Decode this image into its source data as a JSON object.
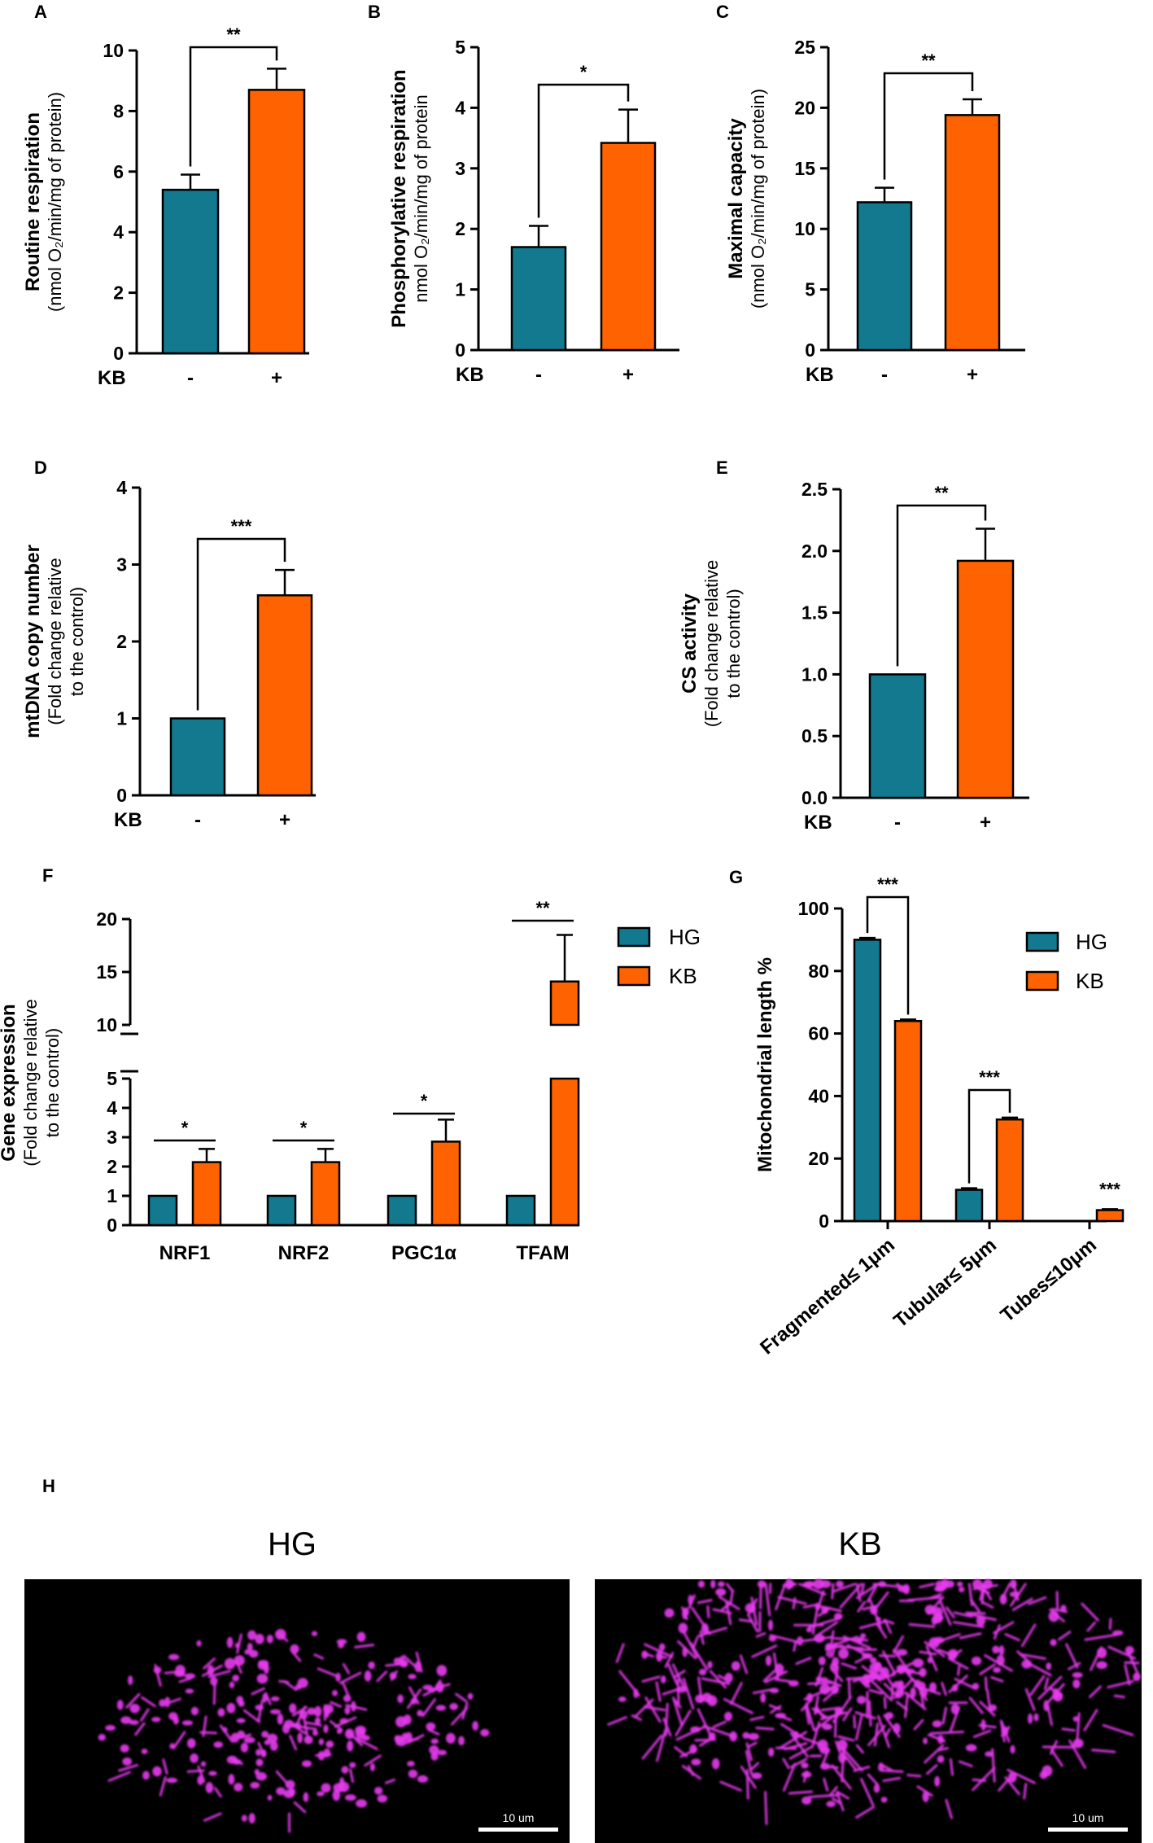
{
  "colors": {
    "hg": "#13798f",
    "kb": "#ff6200",
    "micrograph_bg": "#000000",
    "mito": "#e83cf0"
  },
  "chart_data": [
    {
      "id": "A",
      "type": "bar",
      "panel_label": "A",
      "ylabel_bold": "Routine respiration",
      "ylabel_sub": "(nmol O₂/min/mg of protein)",
      "ylim": [
        0,
        10
      ],
      "yticks": [
        0,
        2,
        4,
        6,
        8,
        10
      ],
      "tick_labels": [
        "0",
        "2",
        "4",
        "6",
        "8",
        "10"
      ],
      "factor_label": "KB",
      "categories": [
        "-",
        "+"
      ],
      "values": [
        5.4,
        8.7
      ],
      "errors": [
        0.5,
        0.7
      ],
      "significance": "**"
    },
    {
      "id": "B",
      "type": "bar",
      "panel_label": "B",
      "ylabel_bold": "Phosphorylative respiration",
      "ylabel_sub": "nmol O₂/min/mg of protein",
      "ylim": [
        0,
        5
      ],
      "yticks": [
        0,
        1,
        2,
        3,
        4,
        5
      ],
      "tick_labels": [
        "0",
        "1",
        "2",
        "3",
        "4",
        "5"
      ],
      "factor_label": "KB",
      "categories": [
        "-",
        "+"
      ],
      "values": [
        1.7,
        3.42
      ],
      "errors": [
        0.35,
        0.55
      ],
      "significance": "*"
    },
    {
      "id": "C",
      "type": "bar",
      "panel_label": "C",
      "ylabel_bold": "Maximal capacity",
      "ylabel_sub": "(nmol O₂/min/mg of protein)",
      "ylim": [
        0,
        25
      ],
      "yticks": [
        0,
        5,
        10,
        15,
        20,
        25
      ],
      "tick_labels": [
        "0",
        "5",
        "10",
        "15",
        "20",
        "25"
      ],
      "factor_label": "KB",
      "categories": [
        "-",
        "+"
      ],
      "values": [
        12.2,
        19.4
      ],
      "errors": [
        1.2,
        1.3
      ],
      "significance": "**"
    },
    {
      "id": "D",
      "type": "bar",
      "panel_label": "D",
      "ylabel_bold": "mtDNA copy number",
      "ylabel_sub1": "(Fold change relative",
      "ylabel_sub2": "to the control)",
      "ylim": [
        0,
        4
      ],
      "yticks": [
        0,
        1,
        2,
        3,
        4
      ],
      "tick_labels": [
        "0",
        "1",
        "2",
        "3",
        "4"
      ],
      "factor_label": "KB",
      "categories": [
        "-",
        "+"
      ],
      "values": [
        1.0,
        2.6
      ],
      "errors": [
        0,
        0.33
      ],
      "significance": "***"
    },
    {
      "id": "E",
      "type": "bar",
      "panel_label": "E",
      "ylabel_bold": "CS activity",
      "ylabel_sub1": "(Fold change relative",
      "ylabel_sub2": "to the control)",
      "ylim": [
        0,
        2.5
      ],
      "yticks": [
        0,
        0.5,
        1,
        1.5,
        2,
        2.5
      ],
      "tick_labels": [
        "0.0",
        "0.5",
        "1.0",
        "1.5",
        "2.0",
        "2.5"
      ],
      "factor_label": "KB",
      "categories": [
        "-",
        "+"
      ],
      "values": [
        1.0,
        1.92
      ],
      "errors": [
        0,
        0.26
      ],
      "significance": "**"
    },
    {
      "id": "F",
      "type": "bar",
      "panel_label": "F",
      "ylabel_bold": "Gene expression",
      "ylabel_sub1": "(Fold change relative",
      "ylabel_sub2": "to the control)",
      "axis_break": {
        "lower": [
          0,
          5
        ],
        "upper": [
          10,
          20
        ]
      },
      "tick_labels_lower": [
        "0",
        "1",
        "2",
        "3",
        "4",
        "5"
      ],
      "tick_labels_upper": [
        "10",
        "15",
        "20"
      ],
      "categories": [
        "NRF1",
        "NRF2",
        "PGC1α",
        "TFAM"
      ],
      "series": [
        {
          "name": "HG",
          "values": [
            1,
            1,
            1,
            1
          ],
          "errors": [
            0,
            0,
            0,
            0
          ]
        },
        {
          "name": "KB",
          "values": [
            2.15,
            2.15,
            2.85,
            14.1
          ],
          "errors": [
            0.45,
            0.45,
            0.75,
            4.4
          ]
        }
      ],
      "significance": [
        "*",
        "*",
        "*",
        "**"
      ],
      "legend": [
        "HG",
        "KB"
      ]
    },
    {
      "id": "G",
      "type": "bar",
      "panel_label": "G",
      "ylabel_bold": "Mitochondrial length %",
      "ylim": [
        0,
        100
      ],
      "yticks": [
        0,
        20,
        40,
        60,
        80,
        100
      ],
      "tick_labels": [
        "0",
        "20",
        "40",
        "60",
        "80",
        "100"
      ],
      "categories": [
        "Fragmented≤ 1μm",
        "Tubular≤ 5μm",
        "Tubes≤10μm"
      ],
      "series": [
        {
          "name": "HG",
          "values": [
            90,
            10,
            0
          ],
          "errors": [
            0.6,
            0.5,
            0
          ]
        },
        {
          "name": "KB",
          "values": [
            64,
            32.5,
            3.5
          ],
          "errors": [
            0.5,
            0.6,
            0.3
          ]
        }
      ],
      "significance": [
        "***",
        "***",
        "***"
      ],
      "legend": [
        "HG",
        "KB"
      ]
    }
  ],
  "panel_h": {
    "label": "H",
    "images": [
      {
        "title": "HG",
        "scalebar": "10 um"
      },
      {
        "title": "KB",
        "scalebar": "10 um"
      }
    ]
  }
}
